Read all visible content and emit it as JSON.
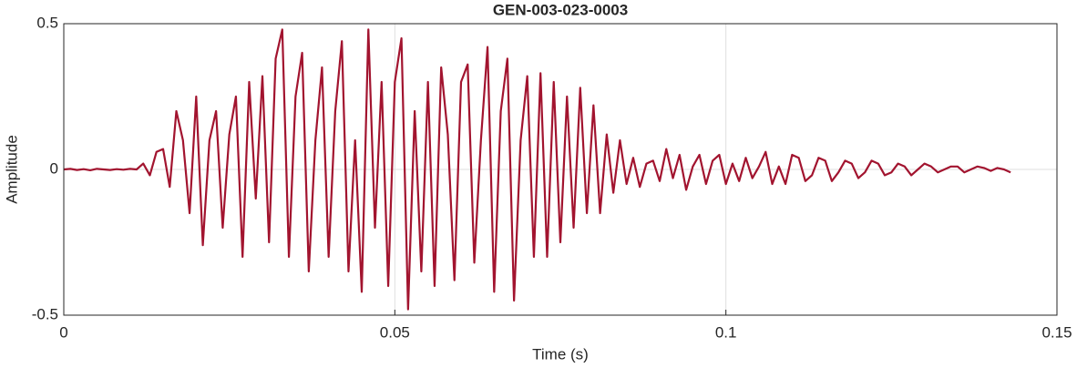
{
  "chart_data": {
    "type": "line",
    "title": "GEN-003-023-0003",
    "xlabel": "Time (s)",
    "ylabel": "Amplitude",
    "color": "#a2142f",
    "grid": true,
    "xlim": [
      0,
      0.15
    ],
    "xticks": [
      0,
      0.05,
      0.1,
      0.15
    ],
    "ylim": [
      -0.5,
      0.5
    ],
    "yticks": [
      -0.5,
      0,
      0.5
    ],
    "x": [
      0,
      0.001,
      0.002,
      0.003,
      0.004,
      0.005,
      0.006,
      0.007,
      0.008,
      0.009,
      0.01,
      0.011,
      0.012,
      0.013,
      0.014,
      0.015,
      0.016,
      0.017,
      0.018,
      0.019,
      0.02,
      0.021,
      0.022,
      0.023,
      0.024,
      0.025,
      0.026,
      0.027,
      0.028,
      0.029,
      0.03,
      0.031,
      0.032,
      0.033,
      0.034,
      0.035,
      0.036,
      0.037,
      0.038,
      0.039,
      0.04,
      0.041,
      0.042,
      0.043,
      0.044,
      0.045,
      0.046,
      0.047,
      0.048,
      0.049,
      0.05,
      0.051,
      0.052,
      0.053,
      0.054,
      0.055,
      0.056,
      0.057,
      0.058,
      0.059,
      0.06,
      0.061,
      0.062,
      0.063,
      0.064,
      0.065,
      0.066,
      0.067,
      0.068,
      0.069,
      0.07,
      0.071,
      0.072,
      0.073,
      0.074,
      0.075,
      0.076,
      0.077,
      0.078,
      0.079,
      0.08,
      0.081,
      0.082,
      0.083,
      0.084,
      0.085,
      0.086,
      0.087,
      0.088,
      0.089,
      0.09,
      0.091,
      0.092,
      0.093,
      0.094,
      0.095,
      0.096,
      0.097,
      0.098,
      0.099,
      0.1,
      0.101,
      0.102,
      0.103,
      0.104,
      0.105,
      0.106,
      0.107,
      0.108,
      0.109,
      0.11,
      0.111,
      0.112,
      0.113,
      0.114,
      0.115,
      0.116,
      0.117,
      0.118,
      0.119,
      0.12,
      0.121,
      0.122,
      0.123,
      0.124,
      0.125,
      0.126,
      0.127,
      0.128,
      0.129,
      0.13,
      0.131,
      0.132,
      0.133,
      0.134,
      0.135,
      0.136,
      0.137,
      0.138,
      0.139,
      0.14,
      0.141,
      0.142,
      0.143
    ],
    "values": [
      0,
      0.002,
      -0.002,
      0.001,
      -0.003,
      0.002,
      0,
      -0.002,
      0.001,
      -0.001,
      0.002,
      0,
      0.02,
      -0.02,
      0.06,
      0.07,
      -0.06,
      0.2,
      0.1,
      -0.15,
      0.25,
      -0.26,
      0.1,
      0.2,
      -0.2,
      0.12,
      0.25,
      -0.3,
      0.3,
      -0.1,
      0.32,
      -0.25,
      0.38,
      0.48,
      -0.3,
      0.25,
      0.4,
      -0.35,
      0.1,
      0.35,
      -0.3,
      0.2,
      0.44,
      -0.35,
      0.1,
      -0.42,
      0.48,
      -0.2,
      0.3,
      -0.4,
      0.3,
      0.45,
      -0.48,
      0.2,
      -0.35,
      0.3,
      -0.4,
      0.35,
      0.12,
      -0.38,
      0.3,
      0.36,
      -0.32,
      0.1,
      0.42,
      -0.42,
      0.2,
      0.38,
      -0.45,
      0.1,
      0.32,
      -0.3,
      0.33,
      -0.3,
      0.3,
      -0.25,
      0.25,
      -0.2,
      0.28,
      -0.15,
      0.22,
      -0.15,
      0.12,
      -0.08,
      0.1,
      -0.05,
      0.04,
      -0.06,
      0.02,
      0.03,
      -0.04,
      0.07,
      -0.03,
      0.05,
      -0.07,
      0.01,
      0.05,
      -0.05,
      0.03,
      0.05,
      -0.05,
      0.02,
      -0.04,
      0.04,
      -0.03,
      0.01,
      0.06,
      -0.05,
      0.01,
      -0.05,
      0.05,
      0.04,
      -0.04,
      -0.02,
      0.04,
      0.03,
      -0.04,
      -0.01,
      0.03,
      0.02,
      -0.03,
      -0.01,
      0.03,
      0.02,
      -0.02,
      -0.01,
      0.02,
      0.01,
      -0.02,
      0,
      0.02,
      0.01,
      -0.01,
      0,
      0.01,
      0.01,
      -0.01,
      0,
      0.01,
      0.005,
      -0.005,
      0.005,
      0,
      -0.01
    ]
  }
}
